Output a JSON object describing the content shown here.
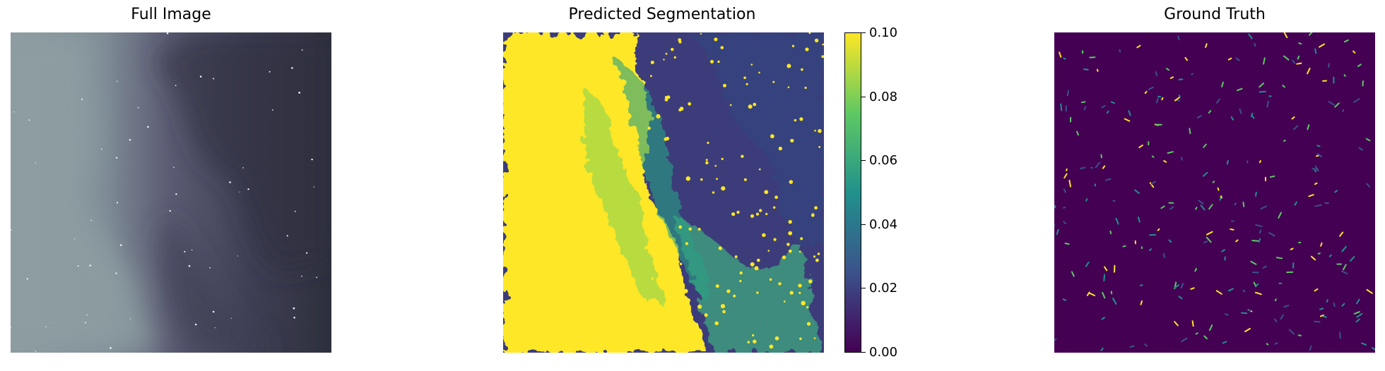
{
  "panels": {
    "full_image": {
      "title": "Full Image"
    },
    "predicted": {
      "title": "Predicted Segmentation"
    },
    "ground_truth": {
      "title": "Ground Truth"
    }
  },
  "colorbar": {
    "ticks": [
      "0.00",
      "0.02",
      "0.04",
      "0.06",
      "0.08",
      "0.10"
    ],
    "range": [
      0.0,
      0.1
    ],
    "colormap": "viridis"
  },
  "colors": {
    "viridis_low": "#440154",
    "viridis_mid": "#21918c",
    "viridis_high": "#fde725",
    "gray_light": "#8c9aa0",
    "gray_dark": "#30303f"
  }
}
